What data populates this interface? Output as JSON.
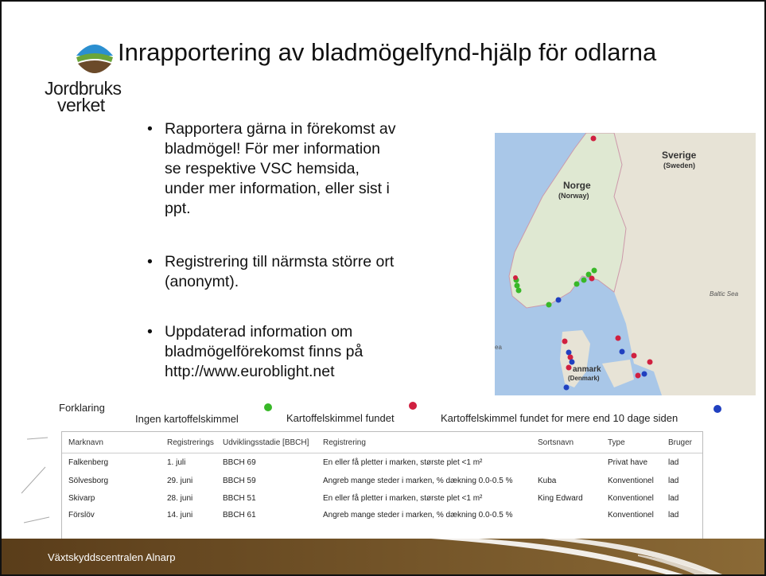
{
  "header": {
    "title": "Inrapportering av bladmögelfynd-hjälp för odlarna",
    "logo_line1": "Jordbruks",
    "logo_line2": "verket"
  },
  "bullets": [
    [
      "Rapportera gärna in förekomst av",
      "bladmögel! För mer information",
      "se respektive VSC hemsida,",
      "under mer information, eller sist i",
      "ppt."
    ],
    [
      "Registrering till närmsta större ort",
      "(anonymt)."
    ],
    [
      "Uppdaterad information om",
      "bladmögelförekomst finns på",
      "http://www.euroblight.net"
    ]
  ],
  "map": {
    "labels": [
      "Norge",
      "(Norway)",
      "Sverige",
      "(Sweden)",
      "Baltic Sea",
      "anmark",
      "(Denmark)",
      "ea"
    ]
  },
  "legend": {
    "title": "Forklaring",
    "items": [
      "Ingen kartoffelskimmel",
      "Kartoffelskimmel fundet",
      "Kartoffelskimmel fundet for mere end 10 dage siden"
    ]
  },
  "table": {
    "columns": [
      "Marknavn",
      "Registrerings",
      "Udviklingsstadie [BBCH]",
      "Registrering",
      "Sortsnavn",
      "Type",
      "Bruger"
    ],
    "rows": [
      [
        "Falkenberg",
        "1. juli",
        "BBCH 69",
        "En eller få pletter i marken, største plet <1 m²",
        "",
        "Privat have",
        "lad"
      ],
      [
        "Sölvesborg",
        "29. juni",
        "BBCH 59",
        "Angreb mange steder i marken, % dækning 0.0-0.5 %",
        "Kuba",
        "Konventionel",
        "lad"
      ],
      [
        "Skivarp",
        "28. juni",
        "BBCH 51",
        "En eller få pletter i marken, største plet <1 m²",
        "King Edward",
        "Konventionel",
        "lad"
      ],
      [
        "Förslöv",
        "14. juni",
        "BBCH 61",
        "Angreb mange steder i marken, % dækning 0.0-0.5 %",
        "",
        "Konventionel",
        "lad"
      ]
    ]
  },
  "footer": "Växtskyddscentralen Alnarp"
}
